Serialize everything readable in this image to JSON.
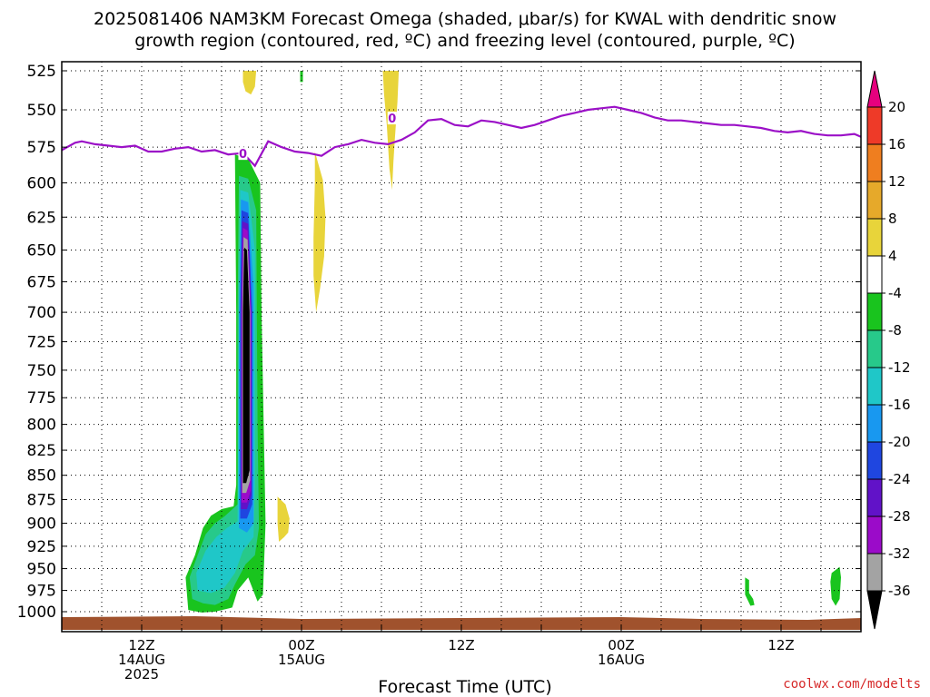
{
  "title_line1": "2025081406 NAM3KM Forecast Omega (shaded, μbar/s) for KWAL with dendritic snow",
  "title_line2": "growth region (contoured, red, ºC) and freezing level (contoured, purple, ºC)",
  "credit": "coolwx.com/modelts",
  "chart_data": {
    "type": "time-height",
    "xlabel": "Forecast Time (UTC)",
    "ylabel": "",
    "y_scale": "pressure",
    "ylim": [
      1000,
      525
    ],
    "y_ticks": [
      525,
      550,
      575,
      600,
      625,
      650,
      675,
      700,
      725,
      750,
      775,
      800,
      825,
      850,
      875,
      900,
      925,
      950,
      975,
      1000
    ],
    "x_ticks": [
      {
        "hour": 6,
        "label": [
          "12Z",
          "14AUG",
          "2025"
        ]
      },
      {
        "hour": 18,
        "label": [
          "00Z",
          "15AUG"
        ]
      },
      {
        "hour": 30,
        "label": [
          "12Z"
        ]
      },
      {
        "hour": 42,
        "label": [
          "00Z",
          "16AUG"
        ]
      },
      {
        "hour": 54,
        "label": [
          "12Z"
        ]
      }
    ],
    "xlim": [
      0,
      60
    ],
    "grid": true,
    "colorbar": {
      "levels": [
        20,
        16,
        12,
        8,
        4,
        -4,
        -8,
        -12,
        -16,
        -20,
        -24,
        -28,
        -32,
        -36
      ],
      "colors": [
        "#e6007e",
        "#ee3a28",
        "#ef7e1f",
        "#e6a92a",
        "#e8d43a",
        "#ffffff",
        "#19c41e",
        "#27c98a",
        "#1fc7c8",
        "#1898f0",
        "#1f46e0",
        "#6112c8",
        "#9b0bc9",
        "#a3a3a3",
        "#000000"
      ]
    },
    "freezing_level": {
      "label": "0",
      "color": "#9b10c7",
      "hours": [
        0,
        1,
        1.5,
        2.5,
        3.5,
        4.5,
        5.5,
        6.5,
        7.5,
        8.5,
        9.5,
        10.5,
        11.5,
        12.5,
        13.6,
        14.5,
        15.5,
        16.5,
        17.5,
        18.5,
        19.5,
        20.5,
        21.5,
        22.5,
        23.5,
        24.5,
        25.5,
        26.5,
        27.5,
        28.5,
        29.5,
        30.5,
        31.5,
        32.5,
        33.5,
        34.5,
        35.5,
        36.5,
        37.5,
        38.5,
        39.5,
        40.5,
        41.5,
        42.5,
        43.5,
        44.5,
        45.5,
        46.5,
        47.5,
        48.5,
        49.5,
        50.5,
        51.5,
        52.5,
        53.5,
        54.5,
        55.5,
        56.5,
        57.5,
        58.5,
        59.5,
        60
      ],
      "pressure": [
        577,
        572,
        571,
        573,
        574,
        575,
        574,
        578,
        578,
        576,
        575,
        578,
        577,
        580,
        579,
        588,
        571,
        575,
        578,
        579,
        581,
        575,
        573,
        570,
        572,
        573,
        570,
        565,
        557,
        556,
        560,
        561,
        557,
        558,
        560,
        562,
        560,
        557,
        554,
        552,
        550,
        549,
        548,
        550,
        552,
        555,
        557,
        557,
        558,
        559,
        560,
        560,
        561,
        562,
        564,
        565,
        564,
        566,
        567,
        567,
        566,
        568
      ]
    },
    "omega_regions": [
      {
        "level": "-4",
        "color": "#19c41e",
        "pts": [
          [
            9.5,
            998
          ],
          [
            9.3,
            960
          ],
          [
            10,
            935
          ],
          [
            10.6,
            905
          ],
          [
            11.2,
            892
          ],
          [
            12,
            885
          ],
          [
            12.9,
            882
          ],
          [
            13.1,
            860
          ],
          [
            13.1,
            700
          ],
          [
            13.0,
            580
          ],
          [
            14.0,
            583
          ],
          [
            14.9,
            600
          ],
          [
            15.0,
            700
          ],
          [
            15.3,
            900
          ],
          [
            15.1,
            980
          ],
          [
            14.7,
            988
          ],
          [
            14.0,
            960
          ],
          [
            13.2,
            975
          ],
          [
            12.8,
            995
          ],
          [
            11.5,
            1000
          ],
          [
            10.5,
            1001
          ]
        ]
      },
      {
        "level": "-8",
        "color": "#27c98a",
        "pts": [
          [
            9.8,
            985
          ],
          [
            9.6,
            960
          ],
          [
            10.2,
            935
          ],
          [
            10.8,
            912
          ],
          [
            11.5,
            900
          ],
          [
            12.2,
            893
          ],
          [
            13.2,
            880
          ],
          [
            13.2,
            700
          ],
          [
            13.3,
            595
          ],
          [
            14.0,
            597
          ],
          [
            14.6,
            620
          ],
          [
            14.7,
            800
          ],
          [
            14.8,
            905
          ],
          [
            14.5,
            935
          ],
          [
            13.8,
            945
          ],
          [
            13.0,
            968
          ],
          [
            12.5,
            985
          ],
          [
            11.5,
            992
          ],
          [
            10.6,
            990
          ]
        ]
      },
      {
        "level": "-12",
        "color": "#1fc7c8",
        "pts": [
          [
            10.2,
            975
          ],
          [
            10.1,
            955
          ],
          [
            10.8,
            930
          ],
          [
            11.6,
            915
          ],
          [
            12.4,
            905
          ],
          [
            13.2,
            898
          ],
          [
            13.3,
            700
          ],
          [
            13.4,
            605
          ],
          [
            14.0,
            607
          ],
          [
            14.5,
            650
          ],
          [
            14.5,
            860
          ],
          [
            14.4,
            915
          ],
          [
            13.6,
            930
          ],
          [
            13.0,
            955
          ],
          [
            12.2,
            972
          ],
          [
            11.2,
            978
          ]
        ]
      },
      {
        "level": "-16",
        "color": "#1898f0",
        "pts": [
          [
            13.3,
            905
          ],
          [
            13.3,
            700
          ],
          [
            13.45,
            612
          ],
          [
            14.0,
            614
          ],
          [
            14.4,
            680
          ],
          [
            14.4,
            900
          ],
          [
            13.9,
            910
          ]
        ]
      },
      {
        "level": "-20",
        "color": "#1f46e0",
        "pts": [
          [
            13.4,
            895
          ],
          [
            13.4,
            700
          ],
          [
            13.5,
            620
          ],
          [
            14.0,
            622
          ],
          [
            14.3,
            700
          ],
          [
            14.3,
            880
          ],
          [
            13.9,
            895
          ]
        ]
      },
      {
        "level": "-24",
        "color": "#6112c8",
        "pts": [
          [
            13.45,
            885
          ],
          [
            13.45,
            700
          ],
          [
            13.55,
            628
          ],
          [
            14.0,
            630
          ],
          [
            14.25,
            700
          ],
          [
            14.25,
            870
          ],
          [
            13.9,
            885
          ]
        ]
      },
      {
        "level": "-28",
        "color": "#9b0bc9",
        "pts": [
          [
            13.5,
            878
          ],
          [
            13.5,
            700
          ],
          [
            13.6,
            633
          ],
          [
            13.95,
            635
          ],
          [
            14.2,
            700
          ],
          [
            14.2,
            865
          ],
          [
            13.9,
            878
          ]
        ]
      },
      {
        "level": "-32",
        "color": "#a3a3a3",
        "pts": [
          [
            13.55,
            868
          ],
          [
            13.55,
            700
          ],
          [
            13.65,
            640
          ],
          [
            13.95,
            642
          ],
          [
            14.15,
            700
          ],
          [
            14.15,
            855
          ],
          [
            13.85,
            868
          ]
        ]
      },
      {
        "level": "-36",
        "color": "#000000",
        "pts": [
          [
            13.6,
            858
          ],
          [
            13.6,
            700
          ],
          [
            13.7,
            648
          ],
          [
            13.9,
            650
          ],
          [
            14.1,
            700
          ],
          [
            14.1,
            845
          ],
          [
            13.85,
            858
          ]
        ]
      },
      {
        "level": "4",
        "color": "#e8d43a",
        "pts": [
          [
            13.6,
            525
          ],
          [
            14.6,
            525
          ],
          [
            14.5,
            535
          ],
          [
            14.2,
            540
          ],
          [
            13.8,
            538
          ],
          [
            13.6,
            532
          ]
        ]
      },
      {
        "level": "4",
        "color": "#e8d43a",
        "pts": [
          [
            24.1,
            525
          ],
          [
            25.3,
            525
          ],
          [
            25.2,
            545
          ],
          [
            25.0,
            570
          ],
          [
            24.9,
            585
          ],
          [
            24.8,
            605
          ],
          [
            24.6,
            590
          ],
          [
            24.4,
            560
          ],
          [
            24.2,
            540
          ]
        ]
      },
      {
        "level": "4",
        "color": "#e8d43a",
        "pts": [
          [
            19.0,
            578
          ],
          [
            19.6,
            598
          ],
          [
            19.8,
            625
          ],
          [
            19.7,
            655
          ],
          [
            19.4,
            680
          ],
          [
            19.1,
            700
          ],
          [
            18.9,
            670
          ],
          [
            18.9,
            640
          ],
          [
            19.0,
            600
          ]
        ]
      },
      {
        "level": "4",
        "color": "#e8d43a",
        "pts": [
          [
            16.2,
            872
          ],
          [
            16.8,
            880
          ],
          [
            17.1,
            895
          ],
          [
            17.0,
            910
          ],
          [
            16.7,
            915
          ],
          [
            16.3,
            920
          ],
          [
            16.2,
            900
          ]
        ]
      },
      {
        "level": "-4",
        "color": "#19c41e",
        "pts": [
          [
            17.9,
            525
          ],
          [
            18.1,
            525
          ],
          [
            18.1,
            532
          ],
          [
            17.9,
            532
          ]
        ]
      },
      {
        "level": "-4",
        "color": "#19c41e",
        "pts": [
          [
            51.3,
            960
          ],
          [
            51.6,
            963
          ],
          [
            51.6,
            978
          ],
          [
            51.9,
            985
          ],
          [
            52.0,
            992
          ],
          [
            51.7,
            993
          ],
          [
            51.3,
            980
          ]
        ]
      },
      {
        "level": "-4",
        "color": "#19c41e",
        "pts": [
          [
            57.8,
            955
          ],
          [
            58.4,
            948
          ],
          [
            58.5,
            960
          ],
          [
            58.4,
            985
          ],
          [
            58.1,
            993
          ],
          [
            57.8,
            985
          ],
          [
            57.7,
            965
          ]
        ]
      }
    ],
    "terrain_color": "#a0522d"
  }
}
